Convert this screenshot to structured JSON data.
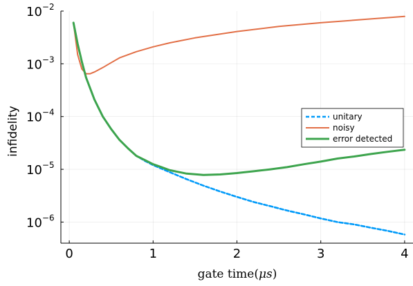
{
  "chart_data": {
    "type": "line",
    "title": "",
    "xlabel": "gate time(μs)",
    "ylabel": "infidelity",
    "xlim": [
      -0.1,
      4.1
    ],
    "ylim_exponents": [
      -6.4,
      -2
    ],
    "y_scale": "log10",
    "x_ticks": [
      "0",
      "1",
      "2",
      "3",
      "4"
    ],
    "y_ticks": [
      {
        "base": "10",
        "exp": "−2"
      },
      {
        "base": "10",
        "exp": "−3"
      },
      {
        "base": "10",
        "exp": "−4"
      },
      {
        "base": "10",
        "exp": "−5"
      },
      {
        "base": "10",
        "exp": "−6"
      }
    ],
    "grid": true,
    "legend_position": "right",
    "series": [
      {
        "name": "unitary",
        "color": "#009af9",
        "dash": true,
        "x": [
          0.05,
          0.1,
          0.15,
          0.2,
          0.3,
          0.4,
          0.5,
          0.6,
          0.7,
          0.8,
          0.9,
          1.0,
          1.2,
          1.4,
          1.6,
          1.8,
          2.0,
          2.2,
          2.4,
          2.6,
          2.8,
          3.0,
          3.2,
          3.4,
          3.6,
          3.8,
          4.0
        ],
        "y": [
          0.006,
          0.0024,
          0.0011,
          0.00055,
          0.00021,
          0.0001,
          5.8e-05,
          3.6e-05,
          2.5e-05,
          1.8e-05,
          1.45e-05,
          1.2e-05,
          8.8e-06,
          6.5e-06,
          4.9e-06,
          3.8e-06,
          3e-06,
          2.4e-06,
          2e-06,
          1.65e-06,
          1.4e-06,
          1.17e-06,
          1e-06,
          9e-07,
          7.8e-07,
          6.8e-07,
          5.8e-07
        ]
      },
      {
        "name": "noisy",
        "color": "#e26f46",
        "dash": false,
        "x": [
          0.05,
          0.1,
          0.15,
          0.2,
          0.25,
          0.3,
          0.4,
          0.5,
          0.6,
          0.8,
          1.0,
          1.2,
          1.5,
          2.0,
          2.5,
          3.0,
          3.5,
          4.0
        ],
        "y": [
          0.006,
          0.0015,
          0.0008,
          0.00065,
          0.00065,
          0.0007,
          0.00085,
          0.00105,
          0.0013,
          0.0017,
          0.0021,
          0.0025,
          0.0031,
          0.0041,
          0.0051,
          0.006,
          0.0069,
          0.0079
        ]
      },
      {
        "name": "error detected",
        "color": "#3da44d",
        "dash": false,
        "x": [
          0.05,
          0.1,
          0.15,
          0.2,
          0.3,
          0.4,
          0.5,
          0.6,
          0.7,
          0.8,
          0.9,
          1.0,
          1.1,
          1.2,
          1.4,
          1.6,
          1.8,
          2.0,
          2.2,
          2.4,
          2.6,
          2.8,
          3.0,
          3.2,
          3.4,
          3.6,
          3.8,
          4.0
        ],
        "y": [
          0.006,
          0.0024,
          0.0011,
          0.00055,
          0.00021,
          0.0001,
          5.8e-05,
          3.6e-05,
          2.5e-05,
          1.8e-05,
          1.5e-05,
          1.25e-05,
          1.1e-05,
          9.6e-06,
          8.3e-06,
          7.8e-06,
          8e-06,
          8.5e-06,
          9.2e-06,
          1e-05,
          1.1e-05,
          1.25e-05,
          1.4e-05,
          1.6e-05,
          1.75e-05,
          1.95e-05,
          2.15e-05,
          2.35e-05
        ]
      }
    ]
  }
}
